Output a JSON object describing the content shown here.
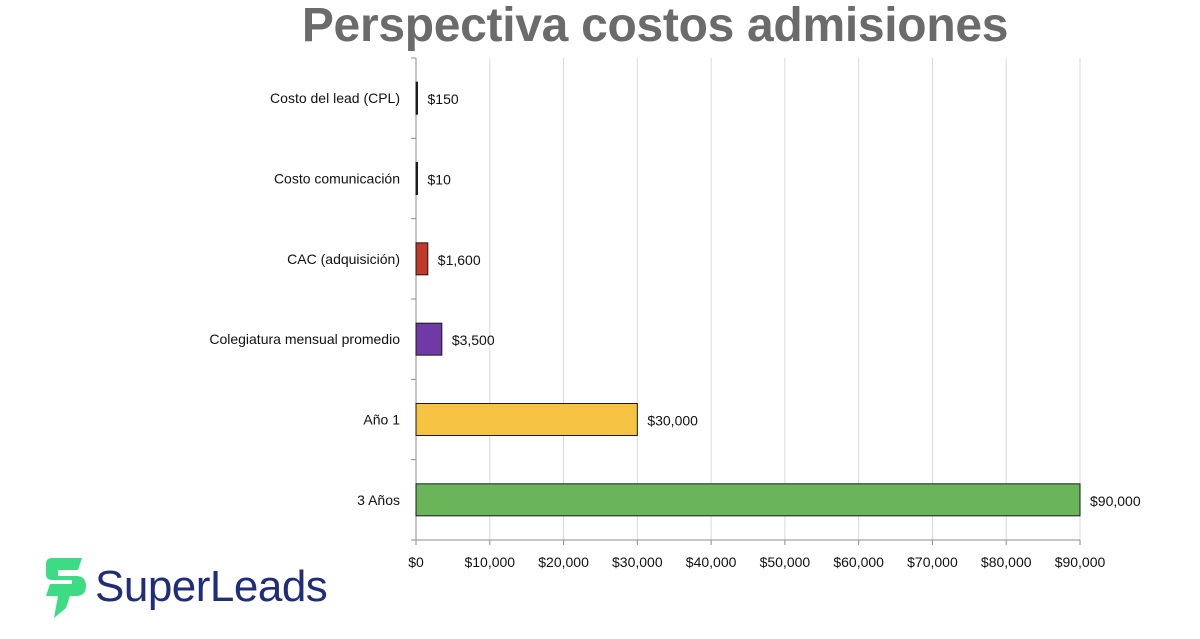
{
  "title": "Perspectiva costos admisiones",
  "brand": {
    "name": "SuperLeads",
    "text_color": "#1f2d7a",
    "mark_color": "#3ddc84"
  },
  "chart_data": {
    "type": "bar",
    "orientation": "horizontal",
    "title": "Perspectiva costos admisiones",
    "categories": [
      "Costo del lead (CPL)",
      "Costo comunicación",
      "CAC (adquisición)",
      "Colegiatura mensual promedio",
      "Año 1",
      "3 Años"
    ],
    "values": [
      150,
      10,
      1600,
      3500,
      30000,
      90000
    ],
    "value_labels": [
      "$150",
      "$10",
      "$1,600",
      "$3,500",
      "$30,000",
      "$90,000"
    ],
    "colors": [
      "#1f1f1f",
      "#1f1f1f",
      "#c0392b",
      "#6f3aa6",
      "#f5c242",
      "#6ab55a"
    ],
    "xlim": [
      0,
      90000
    ],
    "xticks": [
      0,
      10000,
      20000,
      30000,
      40000,
      50000,
      60000,
      70000,
      80000,
      90000
    ],
    "xtick_labels": [
      "$0",
      "$10,000",
      "$20,000",
      "$30,000",
      "$40,000",
      "$50,000",
      "$60,000",
      "$70,000",
      "$80,000",
      "$90,000"
    ],
    "xlabel": "",
    "ylabel": "",
    "grid": "vertical"
  }
}
